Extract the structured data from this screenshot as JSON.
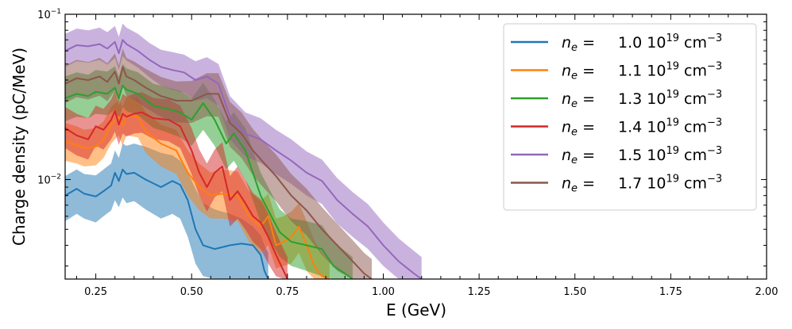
{
  "chart_data": {
    "type": "line",
    "title": "",
    "xlabel": "E (GeV)",
    "ylabel": "Charge density (pC/MeV)",
    "xlim": [
      0.17,
      2.0
    ],
    "ylim": [
      0.0025,
      0.1
    ],
    "yscale": "log",
    "grid": false,
    "legend_position": "top-right",
    "x_ticks": [
      0.25,
      0.5,
      0.75,
      1.0,
      1.25,
      1.5,
      1.75,
      2.0
    ],
    "x_tick_labels": [
      "0.25",
      "0.50",
      "0.75",
      "1.00",
      "1.25",
      "1.50",
      "1.75",
      "2.00"
    ],
    "y_major_ticks": [
      {
        "value": 0.01,
        "base": "10",
        "exp": "−2"
      },
      {
        "value": 0.1,
        "base": "10",
        "exp": "−1"
      }
    ],
    "series": [
      {
        "name": "1.0 10^19 cm^-3",
        "label": {
          "ne": "n",
          "sub": "e",
          "eq": " = ",
          "val": "1.0 10",
          "exp1": "19",
          "unit": " cm",
          "exp2": "−3"
        },
        "color": "#1f77b4",
        "x": [
          0.17,
          0.2,
          0.22,
          0.25,
          0.27,
          0.29,
          0.3,
          0.31,
          0.32,
          0.33,
          0.35,
          0.38,
          0.42,
          0.45,
          0.47,
          0.49,
          0.51,
          0.53,
          0.56,
          0.6,
          0.63,
          0.66,
          0.68,
          0.69,
          0.7
        ],
        "y": [
          0.008,
          0.0088,
          0.0082,
          0.0079,
          0.0085,
          0.0092,
          0.011,
          0.0098,
          0.0115,
          0.0108,
          0.011,
          0.01,
          0.009,
          0.0098,
          0.0093,
          0.0075,
          0.005,
          0.004,
          0.0038,
          0.004,
          0.0041,
          0.004,
          0.0035,
          0.0028,
          0.0025
        ],
        "y_low": [
          0.0056,
          0.0062,
          0.0058,
          0.0055,
          0.006,
          0.0065,
          0.0075,
          0.0068,
          0.0078,
          0.0072,
          0.0074,
          0.0066,
          0.0058,
          0.0062,
          0.0058,
          0.0045,
          0.0031,
          0.0026,
          0.0025,
          0.0025,
          0.0025,
          0.0025,
          0.0025,
          0.0025,
          0.0025
        ],
        "y_high": [
          0.0105,
          0.0115,
          0.0108,
          0.0106,
          0.0115,
          0.0125,
          0.015,
          0.0135,
          0.0165,
          0.016,
          0.0165,
          0.0158,
          0.0145,
          0.014,
          0.013,
          0.011,
          0.0088,
          0.0072,
          0.0066,
          0.0062,
          0.0058,
          0.0052,
          0.0046,
          0.004,
          0.0036
        ]
      },
      {
        "name": "1.1 10^19 cm^-3",
        "label": {
          "ne": "n",
          "sub": "e",
          "eq": " = ",
          "val": "1.1 10",
          "exp1": "19",
          "unit": " cm",
          "exp2": "−3"
        },
        "color": "#ff7f0e",
        "x": [
          0.17,
          0.2,
          0.22,
          0.25,
          0.27,
          0.29,
          0.31,
          0.32,
          0.33,
          0.36,
          0.38,
          0.42,
          0.46,
          0.49,
          0.52,
          0.55,
          0.58,
          0.62,
          0.65,
          0.68,
          0.7,
          0.72,
          0.74,
          0.76,
          0.78,
          0.8,
          0.82,
          0.84,
          0.86
        ],
        "y": [
          0.017,
          0.0162,
          0.0155,
          0.0158,
          0.0175,
          0.0215,
          0.024,
          0.0212,
          0.0245,
          0.024,
          0.0195,
          0.0165,
          0.015,
          0.011,
          0.009,
          0.008,
          0.0082,
          0.008,
          0.006,
          0.0052,
          0.006,
          0.004,
          0.0042,
          0.0045,
          0.0052,
          0.004,
          0.003,
          0.0026,
          0.0025
        ],
        "y_low": [
          0.013,
          0.0125,
          0.012,
          0.0122,
          0.0135,
          0.0165,
          0.0185,
          0.016,
          0.0185,
          0.018,
          0.0145,
          0.012,
          0.0108,
          0.008,
          0.0065,
          0.0058,
          0.0058,
          0.0056,
          0.0042,
          0.0036,
          0.004,
          0.0029,
          0.003,
          0.0031,
          0.0036,
          0.0028,
          0.0025,
          0.0025,
          0.0025
        ],
        "y_high": [
          0.022,
          0.021,
          0.02,
          0.0205,
          0.0225,
          0.0275,
          0.0305,
          0.0275,
          0.0315,
          0.031,
          0.0255,
          0.0215,
          0.02,
          0.015,
          0.0125,
          0.011,
          0.0115,
          0.0112,
          0.0085,
          0.0074,
          0.0082,
          0.0058,
          0.006,
          0.0064,
          0.0072,
          0.0056,
          0.0043,
          0.0036,
          0.0032
        ]
      },
      {
        "name": "1.3 10^19 cm^-3",
        "label": {
          "ne": "n",
          "sub": "e",
          "eq": " = ",
          "val": "1.3 10",
          "exp1": "19",
          "unit": " cm",
          "exp2": "−3"
        },
        "color": "#2ca02c",
        "x": [
          0.17,
          0.2,
          0.23,
          0.25,
          0.28,
          0.3,
          0.31,
          0.32,
          0.33,
          0.36,
          0.4,
          0.43,
          0.47,
          0.5,
          0.53,
          0.56,
          0.59,
          0.61,
          0.64,
          0.66,
          0.68,
          0.7,
          0.73,
          0.76,
          0.8,
          0.84,
          0.87,
          0.9,
          0.92
        ],
        "y": [
          0.031,
          0.033,
          0.032,
          0.034,
          0.033,
          0.036,
          0.031,
          0.037,
          0.035,
          0.033,
          0.028,
          0.027,
          0.0255,
          0.023,
          0.029,
          0.023,
          0.0165,
          0.019,
          0.015,
          0.011,
          0.008,
          0.0065,
          0.0048,
          0.0042,
          0.004,
          0.0038,
          0.003,
          0.0027,
          0.0025
        ],
        "y_low": [
          0.0225,
          0.024,
          0.0235,
          0.025,
          0.0245,
          0.0265,
          0.023,
          0.0275,
          0.026,
          0.0245,
          0.0205,
          0.0195,
          0.018,
          0.016,
          0.02,
          0.016,
          0.0115,
          0.013,
          0.01,
          0.0075,
          0.0055,
          0.0045,
          0.0034,
          0.003,
          0.0028,
          0.0026,
          0.0025,
          0.0025,
          0.0025
        ],
        "y_high": [
          0.042,
          0.0445,
          0.043,
          0.046,
          0.045,
          0.0485,
          0.042,
          0.05,
          0.047,
          0.0445,
          0.038,
          0.0365,
          0.0345,
          0.031,
          0.0385,
          0.0305,
          0.0225,
          0.0255,
          0.0205,
          0.015,
          0.011,
          0.009,
          0.0066,
          0.0058,
          0.0056,
          0.0053,
          0.0042,
          0.0037,
          0.0034
        ]
      },
      {
        "name": "1.4 10^19 cm^-3",
        "label": {
          "ne": "n",
          "sub": "e",
          "eq": " = ",
          "val": "1.4 10",
          "exp1": "19",
          "unit": " cm",
          "exp2": "−3"
        },
        "color": "#d62728",
        "x": [
          0.17,
          0.2,
          0.23,
          0.25,
          0.27,
          0.29,
          0.3,
          0.31,
          0.32,
          0.33,
          0.35,
          0.37,
          0.4,
          0.44,
          0.47,
          0.5,
          0.52,
          0.54,
          0.56,
          0.58,
          0.6,
          0.62,
          0.64,
          0.66,
          0.68,
          0.7,
          0.72,
          0.74,
          0.75
        ],
        "y": [
          0.0205,
          0.0185,
          0.0175,
          0.021,
          0.02,
          0.023,
          0.026,
          0.0215,
          0.025,
          0.024,
          0.025,
          0.0255,
          0.0235,
          0.023,
          0.021,
          0.015,
          0.011,
          0.009,
          0.011,
          0.012,
          0.0075,
          0.0085,
          0.0072,
          0.006,
          0.0055,
          0.0045,
          0.0035,
          0.0028,
          0.0025
        ],
        "y_low": [
          0.0155,
          0.014,
          0.0132,
          0.016,
          0.0152,
          0.0175,
          0.0195,
          0.0162,
          0.019,
          0.0182,
          0.019,
          0.0192,
          0.0176,
          0.017,
          0.0155,
          0.0108,
          0.008,
          0.0064,
          0.0078,
          0.0085,
          0.0052,
          0.0058,
          0.005,
          0.0042,
          0.0038,
          0.0031,
          0.0026,
          0.0025,
          0.0025
        ],
        "y_high": [
          0.0275,
          0.025,
          0.0235,
          0.028,
          0.0268,
          0.0305,
          0.0345,
          0.0285,
          0.033,
          0.0318,
          0.033,
          0.0338,
          0.0312,
          0.0305,
          0.028,
          0.0205,
          0.0152,
          0.0125,
          0.0152,
          0.0168,
          0.0105,
          0.012,
          0.01,
          0.0083,
          0.0076,
          0.0062,
          0.0048,
          0.0038,
          0.0034
        ]
      },
      {
        "name": "1.5 10^19 cm^-3",
        "label": {
          "ne": "n",
          "sub": "e",
          "eq": " = ",
          "val": "1.5 10",
          "exp1": "19",
          "unit": " cm",
          "exp2": "−3"
        },
        "color": "#9467bd",
        "x": [
          0.17,
          0.2,
          0.23,
          0.26,
          0.28,
          0.3,
          0.31,
          0.32,
          0.33,
          0.36,
          0.39,
          0.42,
          0.45,
          0.48,
          0.51,
          0.54,
          0.57,
          0.6,
          0.64,
          0.68,
          0.72,
          0.76,
          0.8,
          0.84,
          0.88,
          0.92,
          0.96,
          1.0,
          1.04,
          1.08,
          1.1
        ],
        "y": [
          0.06,
          0.065,
          0.064,
          0.066,
          0.062,
          0.068,
          0.058,
          0.07,
          0.066,
          0.06,
          0.053,
          0.048,
          0.046,
          0.0445,
          0.04,
          0.042,
          0.038,
          0.024,
          0.019,
          0.0175,
          0.015,
          0.013,
          0.011,
          0.0098,
          0.0075,
          0.0062,
          0.0052,
          0.004,
          0.0032,
          0.0027,
          0.0025
        ],
        "y_low": [
          0.048,
          0.052,
          0.051,
          0.053,
          0.0495,
          0.0545,
          0.046,
          0.056,
          0.0525,
          0.0475,
          0.0415,
          0.037,
          0.035,
          0.0335,
          0.03,
          0.031,
          0.028,
          0.0175,
          0.0138,
          0.0126,
          0.0108,
          0.0094,
          0.008,
          0.0071,
          0.0054,
          0.0045,
          0.0038,
          0.003,
          0.0025,
          0.0025,
          0.0025
        ],
        "y_high": [
          0.076,
          0.082,
          0.08,
          0.083,
          0.078,
          0.085,
          0.073,
          0.088,
          0.083,
          0.076,
          0.067,
          0.061,
          0.059,
          0.057,
          0.052,
          0.055,
          0.05,
          0.032,
          0.0255,
          0.0235,
          0.02,
          0.0175,
          0.0148,
          0.0132,
          0.0102,
          0.0084,
          0.0071,
          0.0055,
          0.0044,
          0.0037,
          0.0034
        ]
      },
      {
        "name": "1.7 10^19 cm^-3",
        "label": {
          "ne": "n",
          "sub": "e",
          "eq": " = ",
          "val": "1.7 10",
          "exp1": "19",
          "unit": " cm",
          "exp2": "−3"
        },
        "color": "#8c564b",
        "x": [
          0.17,
          0.2,
          0.23,
          0.26,
          0.28,
          0.3,
          0.31,
          0.32,
          0.33,
          0.35,
          0.38,
          0.42,
          0.46,
          0.5,
          0.54,
          0.57,
          0.6,
          0.63,
          0.66,
          0.69,
          0.72,
          0.76,
          0.8,
          0.84,
          0.88,
          0.92,
          0.95,
          0.97
        ],
        "y": [
          0.038,
          0.041,
          0.04,
          0.042,
          0.039,
          0.045,
          0.038,
          0.048,
          0.042,
          0.04,
          0.036,
          0.032,
          0.03,
          0.03,
          0.033,
          0.033,
          0.022,
          0.019,
          0.015,
          0.0125,
          0.0105,
          0.008,
          0.0065,
          0.005,
          0.004,
          0.0032,
          0.0027,
          0.0025
        ],
        "y_low": [
          0.029,
          0.0315,
          0.0305,
          0.0322,
          0.0298,
          0.0345,
          0.029,
          0.0368,
          0.032,
          0.0305,
          0.0272,
          0.024,
          0.0222,
          0.022,
          0.0242,
          0.024,
          0.0158,
          0.0135,
          0.0106,
          0.0088,
          0.0074,
          0.0056,
          0.0046,
          0.0035,
          0.0028,
          0.0025,
          0.0025,
          0.0025
        ],
        "y_high": [
          0.049,
          0.053,
          0.0515,
          0.0545,
          0.0505,
          0.058,
          0.049,
          0.062,
          0.0545,
          0.0518,
          0.0468,
          0.0418,
          0.0392,
          0.0395,
          0.044,
          0.044,
          0.0295,
          0.0255,
          0.0202,
          0.0168,
          0.0142,
          0.0108,
          0.0088,
          0.0068,
          0.0054,
          0.0043,
          0.0036,
          0.0033
        ]
      }
    ]
  }
}
